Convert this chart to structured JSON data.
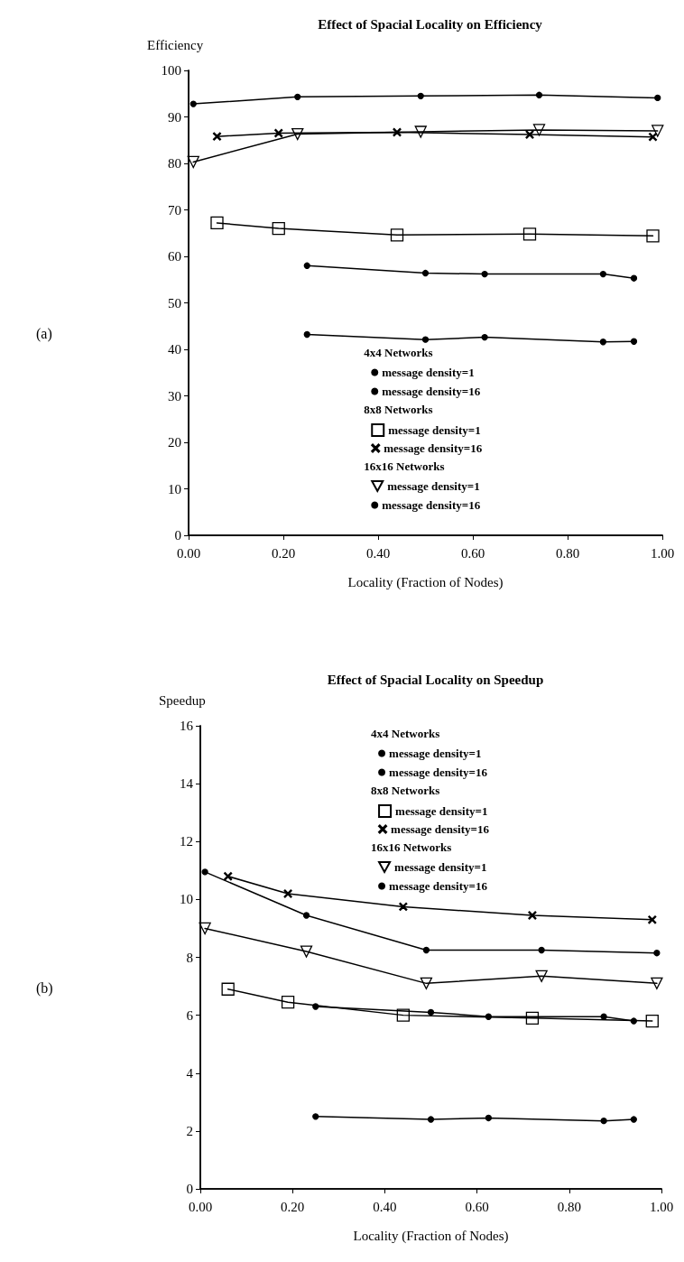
{
  "chart_data": [
    {
      "type": "line",
      "title": "Effect of Spacial Locality on Efficiency",
      "xlabel": "Locality (Fraction of Nodes)",
      "ylabel": "Efficiency",
      "xlim": [
        0,
        1
      ],
      "xticks": [
        {
          "value": 0,
          "label": "0.00"
        },
        {
          "value": 0.2,
          "label": "0.20"
        },
        {
          "value": 0.4,
          "label": "0.40"
        },
        {
          "value": 0.6,
          "label": "0.60"
        },
        {
          "value": 0.8,
          "label": "0.80"
        },
        {
          "value": 1,
          "label": "1.00"
        }
      ],
      "ylim": [
        0,
        100
      ],
      "yticks": [
        0,
        10,
        20,
        30,
        40,
        50,
        60,
        70,
        80,
        90,
        100
      ],
      "grid": false,
      "legend": "bottom",
      "annotations": [
        "(a)",
        "4x4 Networks",
        "8x8 Networks",
        "16x16 Networks"
      ],
      "series": [
        {
          "name": "message density=1",
          "color": "#000000",
          "marker": "circle",
          "x": [
            0.25,
            0.5,
            0.625,
            0.875,
            0.94
          ],
          "values": [
            43.2,
            42.1,
            42.6,
            41.6,
            41.7
          ]
        },
        {
          "name": "message density=16",
          "color": "#000000",
          "marker": "circle",
          "x": [
            0.25,
            0.5,
            0.625,
            0.875,
            0.94
          ],
          "values": [
            58.0,
            56.4,
            56.2,
            56.2,
            55.3
          ]
        },
        {
          "name": "message density=1",
          "color": "#000000",
          "marker": "square",
          "x": [
            0.06,
            0.19,
            0.44,
            0.72,
            0.98
          ],
          "values": [
            67.2,
            66.0,
            64.6,
            64.8,
            64.4
          ]
        },
        {
          "name": "message density=16",
          "color": "#000000",
          "marker": "cross",
          "x": [
            0.06,
            0.19,
            0.44,
            0.72,
            0.98
          ],
          "values": [
            85.8,
            86.5,
            86.7,
            86.2,
            85.7
          ]
        },
        {
          "name": "message density=1",
          "color": "#000000",
          "marker": "triangle",
          "x": [
            0.01,
            0.23,
            0.49,
            0.74,
            0.99
          ],
          "values": [
            80.3,
            86.3,
            86.8,
            87.2,
            87.0
          ]
        },
        {
          "name": "message density=16",
          "color": "#000000",
          "marker": "circle",
          "x": [
            0.01,
            0.23,
            0.49,
            0.74,
            0.99
          ],
          "values": [
            92.8,
            94.3,
            94.5,
            94.7,
            94.1
          ]
        }
      ]
    },
    {
      "type": "line",
      "title": "Effect of Spacial Locality on Speedup",
      "xlabel": "Locality (Fraction of Nodes)",
      "ylabel": "Speedup",
      "xlim": [
        0,
        1
      ],
      "xticks": [
        {
          "value": 0,
          "label": "0.00"
        },
        {
          "value": 0.2,
          "label": "0.20"
        },
        {
          "value": 0.4,
          "label": "0.40"
        },
        {
          "value": 0.6,
          "label": "0.60"
        },
        {
          "value": 0.8,
          "label": "0.80"
        },
        {
          "value": 1,
          "label": "1.00"
        }
      ],
      "ylim": [
        0,
        16
      ],
      "yticks": [
        0,
        2,
        4,
        6,
        8,
        10,
        12,
        14,
        16
      ],
      "grid": false,
      "legend": "top",
      "annotations": [
        "(b)",
        "4x4 Networks",
        "8x8 Networks",
        "16x16 Networks"
      ],
      "series": [
        {
          "name": "message density=1",
          "color": "#000000",
          "marker": "circle",
          "x": [
            0.25,
            0.5,
            0.625,
            0.875,
            0.94
          ],
          "values": [
            2.5,
            2.4,
            2.45,
            2.35,
            2.4
          ]
        },
        {
          "name": "message density=16",
          "color": "#000000",
          "marker": "circle",
          "x": [
            0.25,
            0.5,
            0.625,
            0.875,
            0.94
          ],
          "values": [
            6.3,
            6.1,
            5.95,
            5.95,
            5.8
          ]
        },
        {
          "name": "message density=1",
          "color": "#000000",
          "marker": "square",
          "x": [
            0.06,
            0.19,
            0.44,
            0.72,
            0.98
          ],
          "values": [
            6.9,
            6.45,
            6.0,
            5.9,
            5.8
          ]
        },
        {
          "name": "message density=16",
          "color": "#000000",
          "marker": "cross",
          "x": [
            0.06,
            0.19,
            0.44,
            0.72,
            0.98
          ],
          "values": [
            10.8,
            10.2,
            9.75,
            9.45,
            9.3
          ]
        },
        {
          "name": "message density=1",
          "color": "#000000",
          "marker": "triangle",
          "x": [
            0.01,
            0.23,
            0.49,
            0.74,
            0.99
          ],
          "values": [
            9.0,
            8.2,
            7.1,
            7.35,
            7.1
          ]
        },
        {
          "name": "message density=16",
          "color": "#000000",
          "marker": "circle",
          "x": [
            0.01,
            0.23,
            0.49,
            0.74,
            0.99
          ],
          "values": [
            10.95,
            9.45,
            8.25,
            8.25,
            8.15
          ]
        }
      ]
    }
  ]
}
